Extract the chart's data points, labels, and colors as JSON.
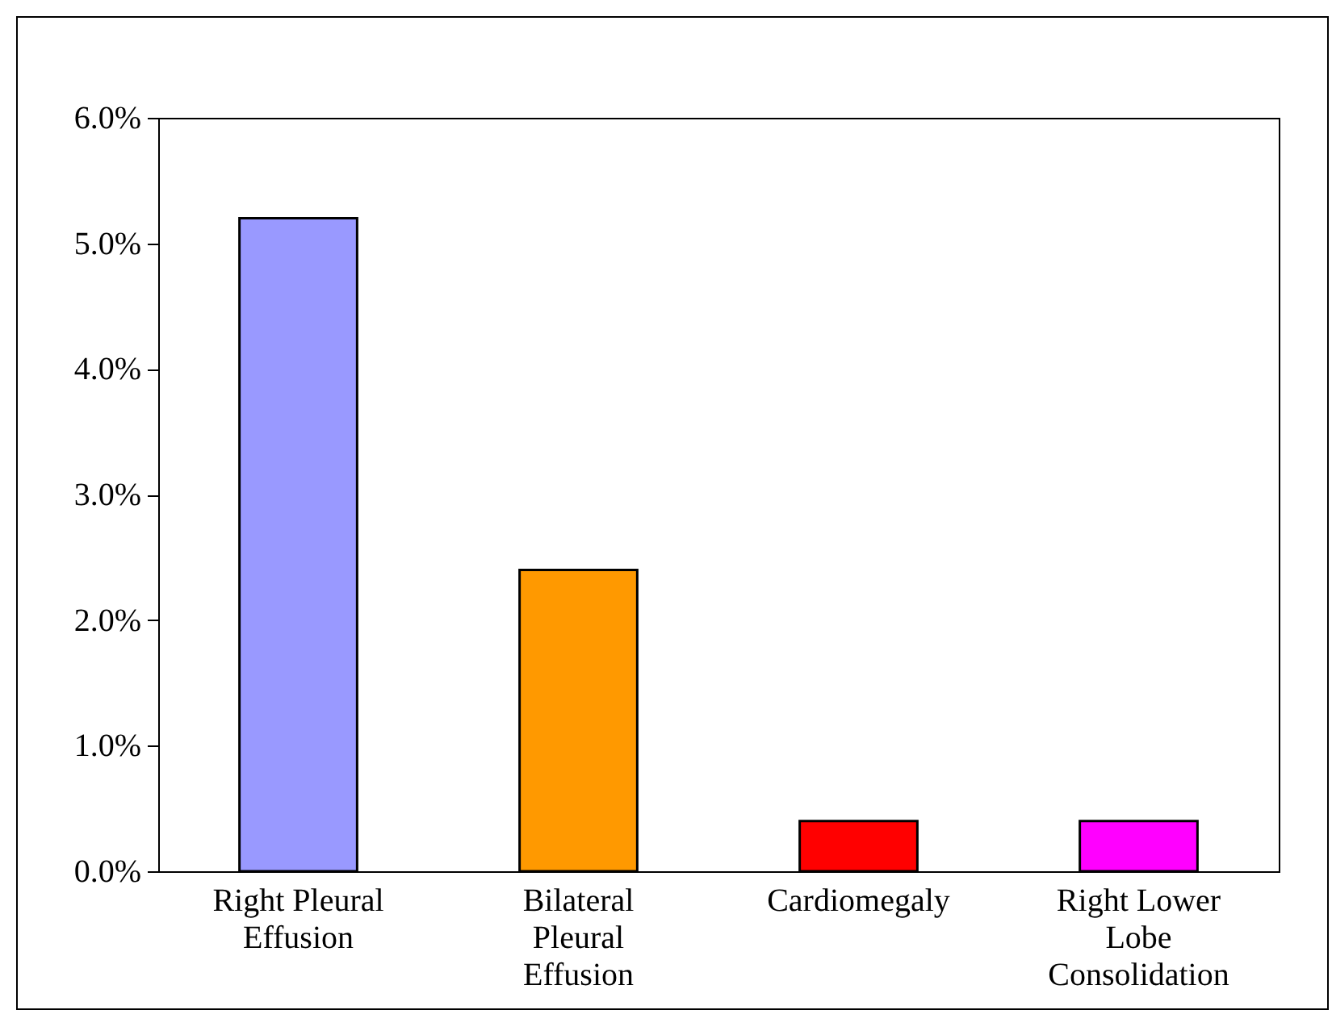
{
  "chart_data": {
    "type": "bar",
    "categories": [
      "Right Pleural Effusion",
      "Bilateral Pleural Effusion",
      "Cardiomegaly",
      "Right Lower Lobe Consolidation"
    ],
    "values": [
      5.2,
      2.4,
      0.4,
      0.4
    ],
    "colors": [
      "#9999ff",
      "#ff9900",
      "#ff0000",
      "#ff00ff"
    ],
    "ylim": [
      0,
      6
    ],
    "yticks": [
      {
        "value": 0,
        "label": "0.0%"
      },
      {
        "value": 1,
        "label": "1.0%"
      },
      {
        "value": 2,
        "label": "2.0%"
      },
      {
        "value": 3,
        "label": "3.0%"
      },
      {
        "value": 4,
        "label": "4.0%"
      },
      {
        "value": 5,
        "label": "5.0%"
      },
      {
        "value": 6,
        "label": "6.0%"
      }
    ],
    "grid": false
  }
}
